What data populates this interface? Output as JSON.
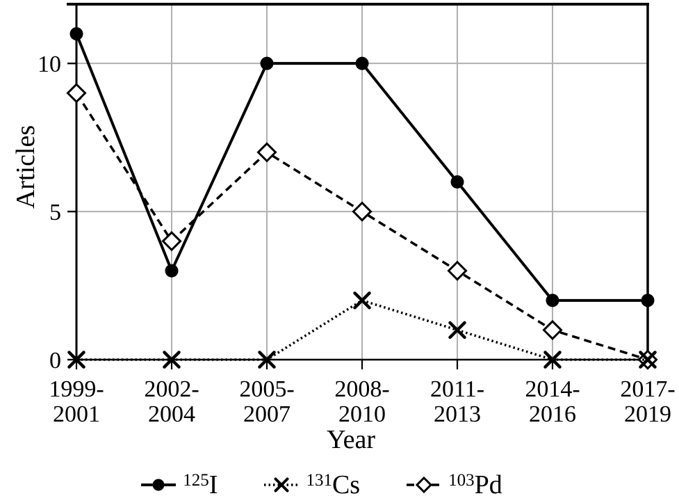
{
  "chart_data": {
    "type": "line",
    "title": "",
    "xlabel": "Year",
    "ylabel": "Articles",
    "categories": [
      {
        "line1": "1999-",
        "line2": "2001"
      },
      {
        "line1": "2002-",
        "line2": "2004"
      },
      {
        "line1": "2005-",
        "line2": "2007"
      },
      {
        "line1": "2008-",
        "line2": "2010"
      },
      {
        "line1": "2011-",
        "line2": "2013"
      },
      {
        "line1": "2014-",
        "line2": "2016"
      },
      {
        "line1": "2017-",
        "line2": "2019"
      }
    ],
    "yticks": [
      0,
      5,
      10
    ],
    "ylim": [
      0,
      12
    ],
    "grid": true,
    "legend_position": "bottom",
    "series": [
      {
        "name": "125I",
        "label_sup": "125",
        "label_base": "I",
        "marker": "circle-filled",
        "line_style": "solid",
        "values": [
          11,
          3,
          10,
          10,
          6,
          2,
          2
        ]
      },
      {
        "name": "131Cs",
        "label_sup": "131",
        "label_base": "Cs",
        "marker": "x",
        "line_style": "dotted",
        "values": [
          0,
          0,
          0,
          2,
          1,
          0,
          0
        ]
      },
      {
        "name": "103Pd",
        "label_sup": "103",
        "label_base": "Pd",
        "marker": "diamond-open",
        "line_style": "dashed",
        "values": [
          9,
          4,
          7,
          5,
          3,
          1,
          0
        ]
      }
    ],
    "colors": {
      "series": "#000000",
      "grid": "#b0b0b0",
      "background": "#ffffff",
      "text": "#000000"
    }
  }
}
